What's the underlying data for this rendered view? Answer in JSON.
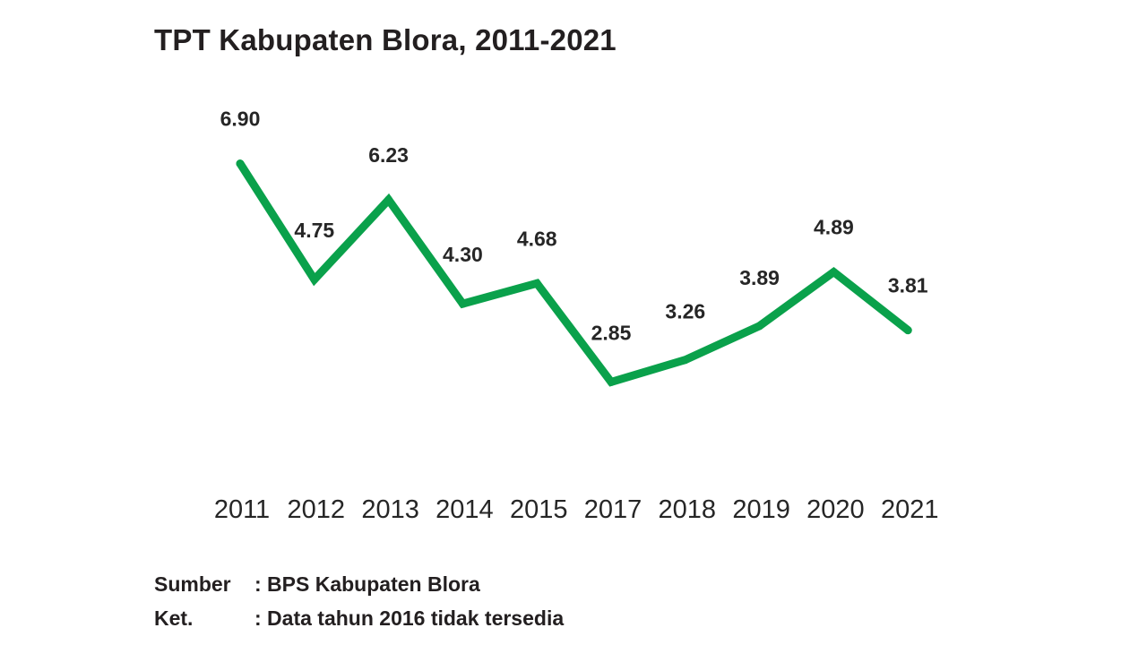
{
  "title": "TPT Kabupaten Blora, 2011-2021",
  "notes": [
    {
      "key": "Sumber",
      "value": ": BPS Kabupaten Blora"
    },
    {
      "key": "Ket.",
      "value": ": Data tahun 2016 tidak tersedia"
    }
  ],
  "colors": {
    "line": "#0aa14b",
    "text": "#262626"
  },
  "chart_data": {
    "type": "line",
    "title": "TPT Kabupaten Blora, 2011-2021",
    "xlabel": "",
    "ylabel": "",
    "categories": [
      "2011",
      "2012",
      "2013",
      "2014",
      "2015",
      "2017",
      "2018",
      "2019",
      "2020",
      "2021"
    ],
    "series": [
      {
        "values": [
          6.9,
          4.75,
          6.23,
          4.3,
          4.68,
          2.85,
          3.26,
          3.89,
          4.89,
          3.81
        ],
        "labels": [
          "6.90",
          "4.75",
          "6.23",
          "4.30",
          "4.68",
          "2.85",
          "3.26",
          "3.89",
          "4.89",
          "3.81"
        ]
      }
    ],
    "data_labels": true,
    "grid": false,
    "legend": "none"
  }
}
